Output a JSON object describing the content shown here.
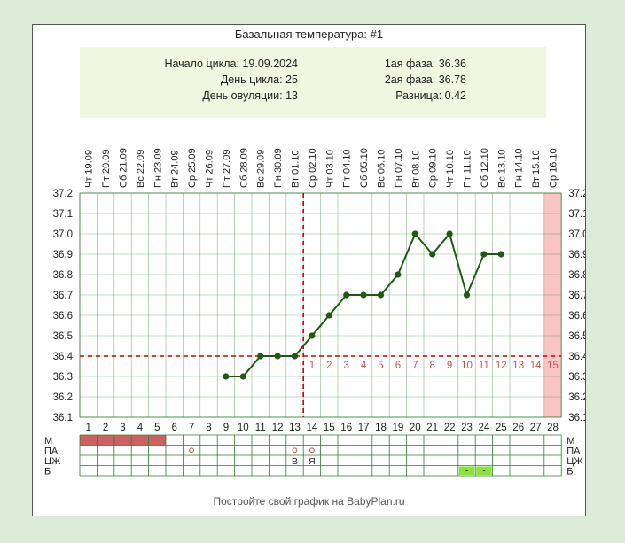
{
  "page": {
    "title": "Базальная температура: #1",
    "credit": "Постройте свой график на BabyPlan.ru"
  },
  "info": {
    "cycle_start_label": "Начало цикла:",
    "cycle_start": "19.09.2024",
    "cycle_day_label": "День цикла:",
    "cycle_day": "25",
    "ovulation_day_label": "День овуляции:",
    "ovulation_day": "13",
    "phase1_label": "1ая фаза:",
    "phase1": "36.36",
    "phase2_label": "2ая фаза:",
    "phase2": "36.78",
    "diff_label": "Разница:",
    "diff": "0.42"
  },
  "colors": {
    "line": "#1f5a12",
    "grid": "#2e7d32",
    "cover_line": "#cc0000",
    "menses": "#cd6060",
    "highlight_col": "#f9c4c4",
    "luteal_digits": "#d15050",
    "spot_b": "#8ee03a"
  },
  "chart_data": {
    "type": "line",
    "title": "Базальная температура: #1",
    "cycle_days": [
      1,
      2,
      3,
      4,
      5,
      6,
      7,
      8,
      9,
      10,
      11,
      12,
      13,
      14,
      15,
      16,
      17,
      18,
      19,
      20,
      21,
      22,
      23,
      24,
      25,
      26,
      27,
      28
    ],
    "dates": [
      "19.09",
      "20.09",
      "21.09",
      "22.09",
      "23.09",
      "24.09",
      "25.09",
      "26.09",
      "27.09",
      "28.09",
      "29.09",
      "30.09",
      "01.10",
      "02.10",
      "03.10",
      "04.10",
      "05.10",
      "06.10",
      "07.10",
      "08.10",
      "09.10",
      "10.10",
      "11.10",
      "12.10",
      "13.10",
      "14.10",
      "15.10",
      "16.10"
    ],
    "weekdays": [
      "Чт",
      "Пт",
      "Сб",
      "Вс",
      "Пн",
      "Вт",
      "Ср",
      "Чт",
      "Пт",
      "Сб",
      "Вс",
      "Пн",
      "Вт",
      "Ср",
      "Чт",
      "Пт",
      "Сб",
      "Вс",
      "Пн",
      "Вт",
      "Ср",
      "Чт",
      "Пт",
      "Сб",
      "Вс",
      "Пн",
      "Вт",
      "Ср"
    ],
    "yticks": [
      "37.2",
      "37.1",
      "37.0",
      "36.9",
      "36.8",
      "36.7",
      "36.6",
      "36.5",
      "36.4",
      "36.3",
      "36.2",
      "36.1"
    ],
    "ylim": [
      36.1,
      37.2
    ],
    "temperatures": [
      null,
      null,
      null,
      null,
      null,
      null,
      null,
      null,
      36.3,
      36.3,
      36.4,
      36.4,
      36.4,
      36.5,
      36.6,
      36.7,
      36.7,
      36.7,
      36.8,
      37.0,
      36.9,
      37.0,
      36.7,
      36.9,
      36.9,
      null,
      null,
      null
    ],
    "cover_line": 36.4,
    "ovulation_day": 13,
    "luteal_labels": [
      "1",
      "2",
      "3",
      "4",
      "5",
      "6",
      "7",
      "8",
      "9",
      "10",
      "11",
      "12",
      "13",
      "14",
      "15"
    ],
    "highlight_day": 28,
    "rows": [
      {
        "label": "М",
        "marks": [
          {
            "day": 1,
            "value": "bar"
          },
          {
            "day": 2,
            "value": "bar"
          },
          {
            "day": 3,
            "value": "bar"
          },
          {
            "day": 4,
            "value": "bar"
          },
          {
            "day": 5,
            "value": "bar"
          }
        ]
      },
      {
        "label": "ПА",
        "marks": [
          {
            "day": 7,
            "value": "o"
          },
          {
            "day": 13,
            "value": "o"
          },
          {
            "day": 14,
            "value": "o"
          }
        ]
      },
      {
        "label": "ЦЖ",
        "marks": [
          {
            "day": 13,
            "value": "В"
          },
          {
            "day": 14,
            "value": "Я"
          }
        ]
      },
      {
        "label": "Б",
        "marks": [
          {
            "day": 23,
            "value": "-"
          },
          {
            "day": 24,
            "value": "-"
          }
        ]
      }
    ]
  }
}
